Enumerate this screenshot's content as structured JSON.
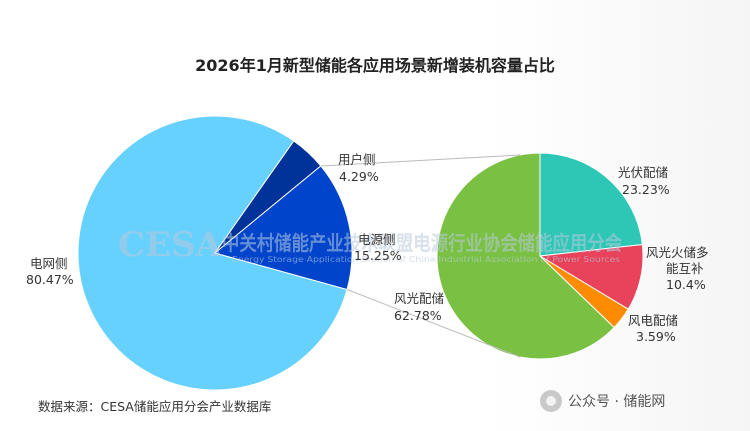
{
  "chart_data": [
    {
      "type": "pie",
      "title": "2026年1月新型储能各应用场景新增装机容量占比",
      "series": [
        {
          "values": [
            80.47,
            4.29,
            15.25
          ]
        }
      ],
      "categories": [
        "电网侧",
        "用户侧",
        "电源侧"
      ],
      "labels": [
        {
          "name": "电网侧",
          "value": "80.47%"
        },
        {
          "name": "用户侧",
          "value": "4.29%"
        },
        {
          "name": "电源侧",
          "value": "15.25%"
        }
      ],
      "colors": [
        "#66d1fd",
        "#003399",
        "#0044cc"
      ]
    },
    {
      "type": "pie",
      "parent_slice": "电源侧",
      "series": [
        {
          "values": [
            23.23,
            10.4,
            3.59,
            62.78
          ]
        }
      ],
      "categories": [
        "光伏配储",
        "风光火储多能互补",
        "风电配储",
        "风光配储"
      ],
      "labels": [
        {
          "name": "光伏配储",
          "value": "23.23%"
        },
        {
          "name_line1": "风光火储多",
          "name_line2": "能互补",
          "value": "10.4%"
        },
        {
          "name": "风电配储",
          "value": "3.59%"
        },
        {
          "name": "风光配储",
          "value": "62.78%"
        }
      ],
      "colors": [
        "#2ec7b6",
        "#e8435a",
        "#ff8c00",
        "#7ac143"
      ]
    }
  ],
  "source": "数据来源：CESA储能应用分会产业数据库",
  "brand": "公众号 · 储能网",
  "watermark": {
    "big": "CESA",
    "cn": "中关村储能产业技术联盟电源行业协会储能应用分会",
    "en": "Energy Storage Application Branch of China Industrial Association of Power Sources"
  }
}
